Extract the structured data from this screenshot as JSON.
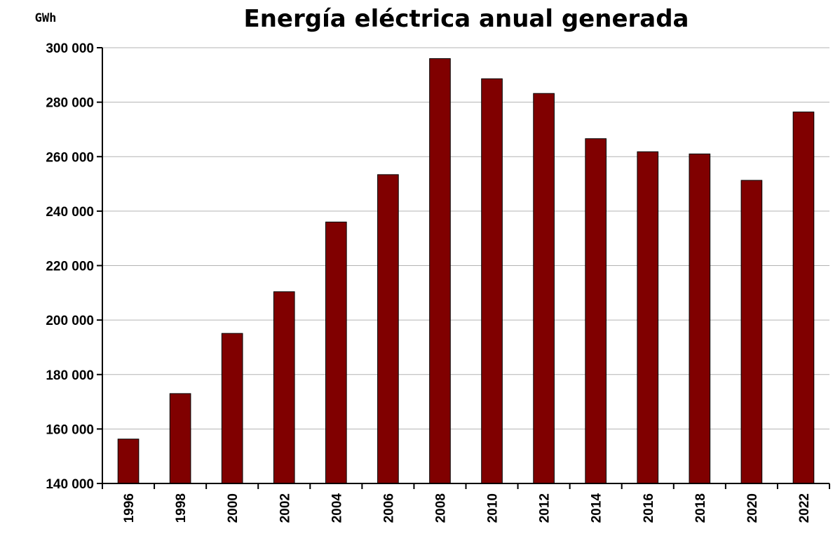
{
  "chart_data": {
    "type": "bar",
    "title": "Energía eléctrica anual generada",
    "unit": "GWh",
    "xlabel": "",
    "ylabel": "",
    "categories": [
      "1996",
      "1998",
      "2000",
      "2002",
      "2004",
      "2006",
      "2008",
      "2010",
      "2012",
      "2014",
      "2016",
      "2018",
      "2020",
      "2022"
    ],
    "values": [
      156300,
      173000,
      195100,
      210400,
      236000,
      253400,
      296000,
      288600,
      283200,
      266600,
      261800,
      261000,
      251300,
      276400
    ],
    "ylim": [
      140000,
      300000
    ],
    "yticks": [
      140000,
      160000,
      180000,
      200000,
      220000,
      240000,
      260000,
      280000,
      300000
    ],
    "ytick_labels": [
      "140 000",
      "160 000",
      "180 000",
      "200 000",
      "220 000",
      "240 000",
      "260 000",
      "280 000",
      "300 000"
    ],
    "grid": true,
    "legend": "none",
    "bar_color": "#800000"
  }
}
